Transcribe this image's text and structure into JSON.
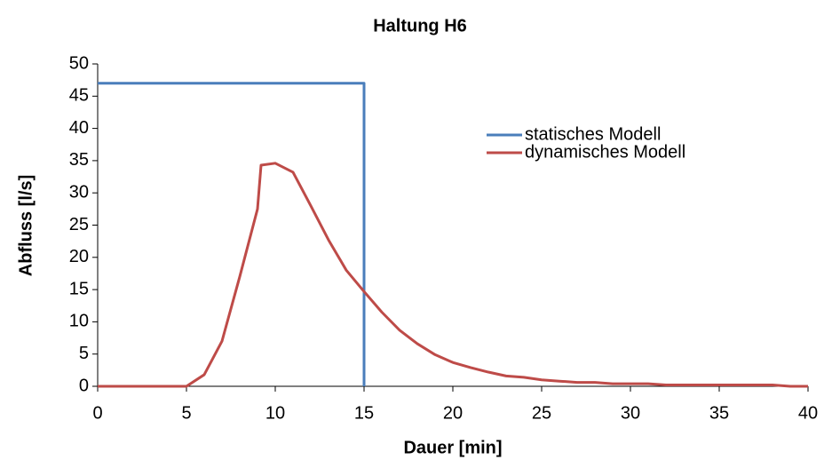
{
  "chart_data": {
    "type": "line",
    "title": "Haltung H6",
    "x_label": "Dauer [min]",
    "y_label": "Abfluss [l/s]",
    "xlim": [
      0,
      40
    ],
    "xticks": [
      0,
      5,
      10,
      15,
      20,
      25,
      30,
      35,
      40
    ],
    "ylim": [
      0,
      50
    ],
    "yticks": [
      0,
      5,
      10,
      15,
      20,
      25,
      30,
      35,
      40,
      45,
      50
    ],
    "grid": false,
    "legend": "upper right",
    "series": [
      {
        "name": "statisches Modell",
        "color": "#4a7ebb",
        "x": [
          0,
          15,
          15
        ],
        "values": [
          47,
          47,
          0
        ]
      },
      {
        "name": "dynamisches Modell",
        "color": "#be4b48",
        "x": [
          0,
          1,
          2,
          3,
          4,
          5,
          6,
          7,
          8,
          9,
          9.2,
          10,
          11,
          12,
          13,
          14,
          15,
          16,
          17,
          18,
          19,
          20,
          21,
          22,
          23,
          24,
          25,
          26,
          27,
          28,
          29,
          30,
          31,
          32,
          33,
          34,
          35,
          36,
          37,
          38,
          39,
          40
        ],
        "values": [
          0,
          0,
          0,
          0,
          0,
          0,
          1.8,
          7,
          17,
          27.5,
          34.3,
          34.6,
          33.2,
          28,
          22.7,
          18,
          14.7,
          11.5,
          8.7,
          6.6,
          4.9,
          3.7,
          2.9,
          2.2,
          1.6,
          1.4,
          1.0,
          0.8,
          0.6,
          0.6,
          0.4,
          0.4,
          0.4,
          0.2,
          0.2,
          0.2,
          0.2,
          0.2,
          0.2,
          0.2,
          0,
          0
        ]
      }
    ]
  }
}
